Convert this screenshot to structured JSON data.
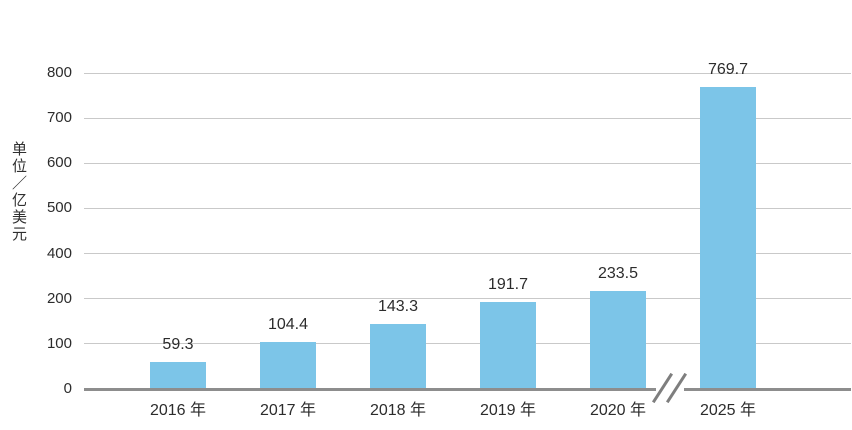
{
  "chart_data": {
    "type": "bar",
    "title": "",
    "xlabel": "",
    "ylabel": "单位／亿美元",
    "categories": [
      "2016 年",
      "2017 年",
      "2018 年",
      "2019 年",
      "2020 年",
      "2025 年"
    ],
    "values": [
      59.3,
      104.4,
      143.3,
      191.7,
      233.5,
      769.7
    ],
    "value_labels": [
      "59.3",
      "104.4",
      "143.3",
      "191.7",
      "233.5",
      "769.7"
    ],
    "y_ticks": [
      0,
      100,
      200,
      400,
      500,
      600,
      700,
      800
    ],
    "ylim": [
      0,
      800
    ],
    "grid": true,
    "legend": false,
    "x_axis_break_between": [
      "2020 年",
      "2025 年"
    ],
    "y_tick_skipped": "300",
    "bar_color": "#7cc5e8",
    "gridline_color": "#c9c9c9",
    "baseline_color": "#8d8d8d",
    "break_mark_color": "#7e7e7e",
    "text_color": "#2c2c2c"
  }
}
